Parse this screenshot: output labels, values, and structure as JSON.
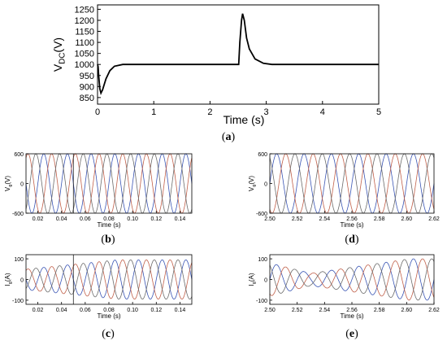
{
  "chart_data": [
    {
      "id": "a",
      "type": "line",
      "caption_letter": "a",
      "xlabel": "Time (s)",
      "ylabel_main": "V",
      "ylabel_sub": "DC",
      "ylabel_unit": "(V)",
      "xlim": [
        0,
        5
      ],
      "ylim": [
        820,
        1270
      ],
      "xticks": [
        0,
        1,
        2,
        3,
        4,
        5
      ],
      "yticks": [
        850,
        900,
        950,
        1000,
        1050,
        1100,
        1150,
        1200,
        1250
      ],
      "series": [
        {
          "color": "#000000",
          "points": [
            [
              0,
              1000
            ],
            [
              0.01,
              990
            ],
            [
              0.02,
              950
            ],
            [
              0.04,
              890
            ],
            [
              0.06,
              870
            ],
            [
              0.09,
              885
            ],
            [
              0.15,
              935
            ],
            [
              0.22,
              972
            ],
            [
              0.3,
              992
            ],
            [
              0.45,
              1000
            ],
            [
              2.5,
              1000
            ],
            [
              2.51,
              1000
            ],
            [
              2.53,
              1100
            ],
            [
              2.56,
              1200
            ],
            [
              2.58,
              1230
            ],
            [
              2.61,
              1200
            ],
            [
              2.65,
              1120
            ],
            [
              2.7,
              1070
            ],
            [
              2.8,
              1025
            ],
            [
              2.95,
              1005
            ],
            [
              3.1,
              1000
            ],
            [
              5,
              1000
            ]
          ]
        }
      ]
    },
    {
      "id": "b",
      "type": "line",
      "caption_letter": "b",
      "ylabel_main": "V",
      "ylabel_sub": "g",
      "ylabel_unit": "(V)",
      "xlabel": "Time (s)",
      "xlim": [
        0.01,
        0.15
      ],
      "ylim": [
        -600,
        600
      ],
      "xticks": [
        "0.02",
        "0.04",
        "0.06",
        "0.08",
        "0.10",
        "0.12",
        "0.14"
      ],
      "yticks": [
        "-600",
        "0",
        "600"
      ],
      "waveform": {
        "kind": "three-phase-sinusoid",
        "frequency_hz": 50,
        "amplitude": 600,
        "event_time": 0.05
      },
      "series_colors": [
        "#3a55b4",
        "#c0604a",
        "#6b6b6b"
      ]
    },
    {
      "id": "c",
      "type": "line",
      "caption_letter": "c",
      "ylabel_main": "I",
      "ylabel_sub": "g",
      "ylabel_unit": "(A)",
      "xlabel": "Time (s)",
      "xlim": [
        0.01,
        0.15
      ],
      "ylim": [
        -120,
        120
      ],
      "xticks": [
        "0.02",
        "0.04",
        "0.06",
        "0.08",
        "0.10",
        "0.12",
        "0.14"
      ],
      "yticks": [
        "-100",
        "0",
        "100"
      ],
      "waveform": {
        "kind": "three-phase-sinusoid",
        "frequency_hz": 50,
        "amplitude_start": 50,
        "amplitude_end": 95,
        "event_time": 0.05
      },
      "series_colors": [
        "#3a55b4",
        "#c0604a",
        "#6b6b6b"
      ]
    },
    {
      "id": "d",
      "type": "line",
      "caption_letter": "d",
      "ylabel_main": "V",
      "ylabel_sub": "g",
      "ylabel_unit": "(V)",
      "xlabel": "Time (s)",
      "xlim": [
        2.5,
        2.62
      ],
      "ylim": [
        -600,
        600
      ],
      "xticks": [
        "2.50",
        "2.52",
        "2.54",
        "2.56",
        "2.58",
        "2.60",
        "2.62"
      ],
      "yticks": [
        "-600",
        "0",
        "600"
      ],
      "waveform": {
        "kind": "three-phase-sinusoid",
        "frequency_hz": 50,
        "amplitude": 600
      },
      "series_colors": [
        "#3a55b4",
        "#c0604a",
        "#6b6b6b"
      ]
    },
    {
      "id": "e",
      "type": "line",
      "caption_letter": "e",
      "ylabel_main": "I",
      "ylabel_sub": "g",
      "ylabel_unit": "(A)",
      "xlabel": "Time (s)",
      "xlim": [
        2.5,
        2.62
      ],
      "ylim": [
        -120,
        120
      ],
      "xticks": [
        "2.50",
        "2.52",
        "2.54",
        "2.56",
        "2.58",
        "2.60",
        "2.62"
      ],
      "yticks": [
        "-100",
        "0",
        "100"
      ],
      "waveform": {
        "kind": "three-phase-sinusoid",
        "frequency_hz": 50,
        "amplitude_start": 80,
        "amplitude_dip": 30,
        "amplitude_end": 100
      },
      "series_colors": [
        "#3a55b4",
        "#c0604a",
        "#6b6b6b"
      ]
    }
  ]
}
